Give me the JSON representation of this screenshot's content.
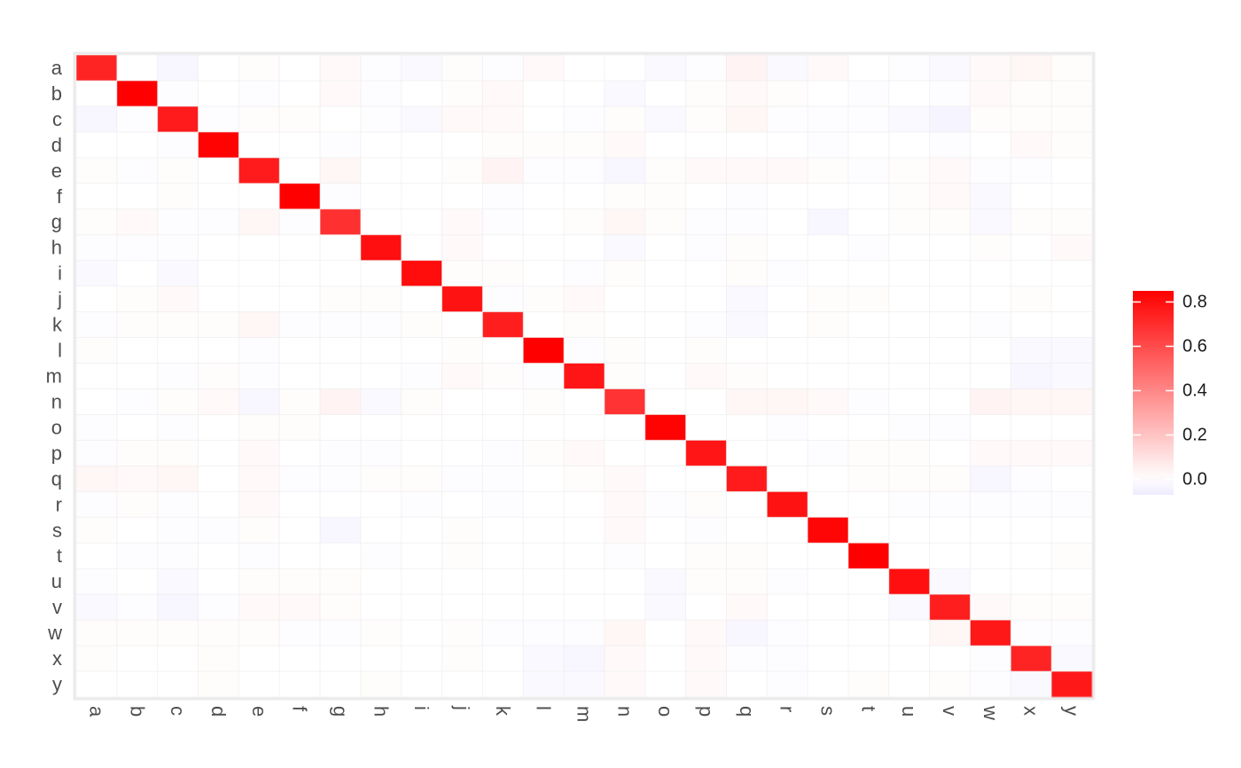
{
  "chart_data": {
    "type": "heatmap",
    "title": "",
    "xlabel": "",
    "ylabel": "",
    "x_categories": [
      "a",
      "b",
      "c",
      "d",
      "e",
      "f",
      "g",
      "h",
      "i",
      "j",
      "k",
      "l",
      "m",
      "n",
      "o",
      "p",
      "q",
      "r",
      "s",
      "t",
      "u",
      "v",
      "w",
      "x",
      "y"
    ],
    "y_categories": [
      "a",
      "b",
      "c",
      "d",
      "e",
      "f",
      "g",
      "h",
      "i",
      "j",
      "k",
      "l",
      "m",
      "n",
      "o",
      "p",
      "q",
      "r",
      "s",
      "t",
      "u",
      "v",
      "w",
      "x",
      "y"
    ],
    "value_range": [
      -0.07,
      0.85
    ],
    "colorscale": {
      "low": "#eeebff",
      "mid": "#ffffff",
      "high": "#ff0000",
      "midpoint": 0
    },
    "legend": {
      "position": "right",
      "ticks": [
        "0.0",
        "0.2",
        "0.4",
        "0.6",
        "0.8"
      ],
      "tick_values": [
        0,
        0.2,
        0.4,
        0.6,
        0.8
      ]
    },
    "grid": true,
    "values": [
      [
        0.73,
        0.0,
        -0.03,
        0.0,
        0.01,
        0.0,
        0.02,
        -0.01,
        -0.02,
        0.01,
        -0.01,
        0.02,
        0.0,
        0.0,
        -0.02,
        -0.01,
        0.04,
        -0.02,
        0.02,
        0.0,
        -0.01,
        -0.02,
        0.02,
        0.03,
        0.01
      ],
      [
        0.0,
        0.85,
        -0.01,
        0.0,
        -0.01,
        0.0,
        0.02,
        -0.01,
        0.0,
        0.01,
        0.02,
        0.0,
        0.0,
        -0.02,
        0.0,
        0.01,
        0.02,
        0.01,
        0.0,
        -0.01,
        0.0,
        -0.01,
        0.02,
        0.01,
        0.01
      ],
      [
        -0.03,
        -0.01,
        0.76,
        -0.01,
        0.01,
        0.01,
        0.0,
        -0.01,
        -0.02,
        0.02,
        0.02,
        0.0,
        -0.01,
        0.01,
        -0.02,
        0.01,
        0.03,
        -0.01,
        -0.01,
        -0.01,
        -0.02,
        -0.04,
        0.01,
        0.01,
        0.01
      ],
      [
        0.0,
        0.0,
        -0.01,
        0.84,
        0.0,
        0.0,
        -0.01,
        0.0,
        0.0,
        0.0,
        0.01,
        0.01,
        0.01,
        0.02,
        0.0,
        0.0,
        0.0,
        0.0,
        -0.01,
        0.0,
        0.0,
        -0.01,
        0.0,
        0.02,
        0.01
      ],
      [
        0.01,
        -0.01,
        0.01,
        0.0,
        0.76,
        0.0,
        0.03,
        0.0,
        0.0,
        0.01,
        0.04,
        -0.01,
        -0.01,
        -0.03,
        0.01,
        0.02,
        0.02,
        0.02,
        0.01,
        -0.01,
        0.01,
        0.02,
        -0.01,
        -0.01,
        0.0
      ],
      [
        0.0,
        0.0,
        0.01,
        0.0,
        0.0,
        0.85,
        -0.01,
        0.0,
        0.0,
        0.0,
        -0.01,
        0.0,
        0.0,
        0.01,
        0.01,
        0.0,
        -0.01,
        0.0,
        0.0,
        0.0,
        0.01,
        0.02,
        -0.02,
        0.0,
        0.0
      ],
      [
        0.01,
        0.02,
        -0.01,
        -0.01,
        0.03,
        -0.01,
        0.69,
        0.0,
        0.0,
        0.02,
        -0.01,
        0.0,
        0.01,
        0.03,
        0.01,
        -0.01,
        -0.01,
        0.0,
        -0.03,
        0.0,
        0.01,
        0.01,
        -0.02,
        0.01,
        0.01
      ],
      [
        -0.01,
        -0.01,
        -0.01,
        0.0,
        0.0,
        0.0,
        0.0,
        0.8,
        0.0,
        0.02,
        0.0,
        0.0,
        0.0,
        -0.02,
        0.0,
        -0.01,
        0.01,
        0.0,
        0.0,
        -0.01,
        0.0,
        0.0,
        0.01,
        0.0,
        0.02
      ],
      [
        -0.02,
        0.0,
        -0.02,
        0.0,
        0.0,
        0.0,
        0.0,
        0.0,
        0.81,
        0.01,
        0.01,
        0.0,
        -0.01,
        0.01,
        0.0,
        0.0,
        0.01,
        -0.01,
        0.0,
        0.0,
        0.0,
        0.0,
        0.0,
        0.0,
        0.0
      ],
      [
        0.0,
        0.01,
        0.02,
        0.0,
        0.0,
        0.0,
        0.01,
        0.01,
        0.0,
        0.79,
        -0.01,
        0.01,
        0.02,
        0.0,
        0.0,
        0.0,
        -0.02,
        0.0,
        0.01,
        0.01,
        0.0,
        0.0,
        0.0,
        0.01,
        0.0
      ],
      [
        -0.01,
        0.01,
        0.01,
        0.01,
        0.03,
        -0.01,
        -0.01,
        -0.01,
        0.01,
        0.0,
        0.75,
        0.0,
        0.01,
        0.0,
        0.0,
        -0.01,
        -0.02,
        0.0,
        0.01,
        0.0,
        0.0,
        0.0,
        -0.01,
        0.0,
        0.0
      ],
      [
        0.01,
        0.0,
        0.0,
        0.0,
        -0.01,
        0.0,
        0.0,
        0.0,
        0.0,
        0.01,
        0.0,
        0.85,
        -0.01,
        0.01,
        0.0,
        0.01,
        0.0,
        0.0,
        0.0,
        0.0,
        0.0,
        0.0,
        0.0,
        -0.02,
        -0.02
      ],
      [
        0.0,
        0.0,
        -0.01,
        0.01,
        -0.01,
        0.0,
        0.0,
        0.0,
        -0.01,
        0.02,
        0.01,
        -0.01,
        0.78,
        0.01,
        0.0,
        0.02,
        0.01,
        0.0,
        0.0,
        0.0,
        0.0,
        0.0,
        0.0,
        -0.03,
        -0.02
      ],
      [
        0.0,
        -0.01,
        0.01,
        0.02,
        -0.03,
        0.01,
        0.04,
        -0.02,
        0.01,
        0.0,
        0.0,
        0.01,
        0.0,
        0.68,
        0.0,
        0.0,
        0.03,
        0.03,
        0.02,
        -0.01,
        0.0,
        0.0,
        0.04,
        0.03,
        0.03
      ],
      [
        -0.01,
        0.0,
        -0.01,
        0.0,
        0.01,
        0.01,
        0.0,
        0.0,
        0.0,
        0.0,
        0.0,
        0.0,
        0.0,
        0.0,
        0.84,
        0.0,
        0.0,
        -0.01,
        0.0,
        0.0,
        -0.01,
        -0.01,
        0.0,
        0.0,
        0.0
      ],
      [
        -0.01,
        0.01,
        0.01,
        0.0,
        0.02,
        0.0,
        -0.01,
        -0.01,
        0.0,
        0.0,
        -0.01,
        0.01,
        0.02,
        0.0,
        0.0,
        0.78,
        0.0,
        0.0,
        -0.01,
        0.01,
        0.01,
        0.0,
        0.02,
        0.02,
        0.02
      ],
      [
        0.03,
        0.02,
        0.03,
        0.0,
        0.02,
        -0.01,
        -0.01,
        0.01,
        0.01,
        -0.01,
        -0.01,
        0.0,
        0.01,
        0.02,
        0.0,
        0.0,
        0.76,
        0.0,
        0.0,
        0.01,
        0.01,
        0.01,
        -0.03,
        -0.01,
        0.0
      ],
      [
        -0.01,
        0.01,
        -0.01,
        0.0,
        0.02,
        0.0,
        0.0,
        0.0,
        -0.01,
        0.0,
        -0.01,
        0.0,
        0.0,
        0.02,
        -0.01,
        0.01,
        0.0,
        0.79,
        0.0,
        0.0,
        -0.01,
        -0.01,
        -0.01,
        -0.01,
        -0.01
      ],
      [
        0.01,
        0.0,
        -0.01,
        -0.01,
        0.01,
        0.0,
        -0.03,
        0.0,
        0.0,
        0.01,
        0.0,
        0.0,
        0.0,
        0.02,
        0.0,
        -0.01,
        0.0,
        0.0,
        0.83,
        0.0,
        0.0,
        0.0,
        0.0,
        0.0,
        0.0
      ],
      [
        0.0,
        -0.01,
        -0.01,
        0.0,
        -0.01,
        0.0,
        0.0,
        -0.01,
        0.0,
        0.01,
        0.0,
        0.0,
        0.0,
        -0.01,
        0.0,
        0.01,
        0.01,
        0.0,
        0.0,
        0.85,
        0.0,
        0.0,
        0.0,
        0.0,
        0.01
      ],
      [
        -0.01,
        0.0,
        -0.02,
        0.0,
        0.01,
        0.01,
        0.01,
        0.0,
        0.0,
        0.0,
        0.0,
        0.0,
        0.0,
        0.0,
        -0.02,
        0.01,
        0.01,
        -0.01,
        0.0,
        0.0,
        0.8,
        -0.02,
        0.0,
        0.0,
        0.0
      ],
      [
        -0.02,
        -0.01,
        -0.03,
        -0.01,
        0.02,
        0.02,
        0.01,
        0.0,
        0.0,
        0.0,
        0.0,
        0.0,
        0.0,
        0.0,
        -0.02,
        0.0,
        0.02,
        0.0,
        0.0,
        0.0,
        -0.02,
        0.75,
        0.02,
        0.01,
        0.01
      ],
      [
        0.01,
        0.01,
        0.01,
        0.01,
        0.01,
        -0.01,
        -0.01,
        0.01,
        0.0,
        0.01,
        -0.01,
        -0.01,
        -0.01,
        0.03,
        0.0,
        0.02,
        -0.03,
        -0.01,
        0.0,
        0.0,
        0.0,
        0.03,
        0.77,
        -0.01,
        -0.01
      ],
      [
        0.01,
        0.0,
        0.0,
        0.01,
        0.0,
        0.0,
        0.0,
        0.0,
        0.0,
        0.01,
        0.0,
        -0.02,
        -0.03,
        0.02,
        0.0,
        0.02,
        -0.01,
        -0.01,
        0.0,
        0.0,
        0.0,
        0.0,
        -0.01,
        0.73,
        -0.02
      ],
      [
        0.0,
        0.0,
        0.0,
        0.01,
        0.0,
        0.0,
        0.0,
        0.01,
        0.0,
        0.0,
        0.0,
        -0.02,
        -0.02,
        0.02,
        0.0,
        0.02,
        0.0,
        -0.01,
        0.0,
        0.01,
        0.0,
        0.01,
        -0.01,
        -0.02,
        0.77
      ]
    ]
  }
}
